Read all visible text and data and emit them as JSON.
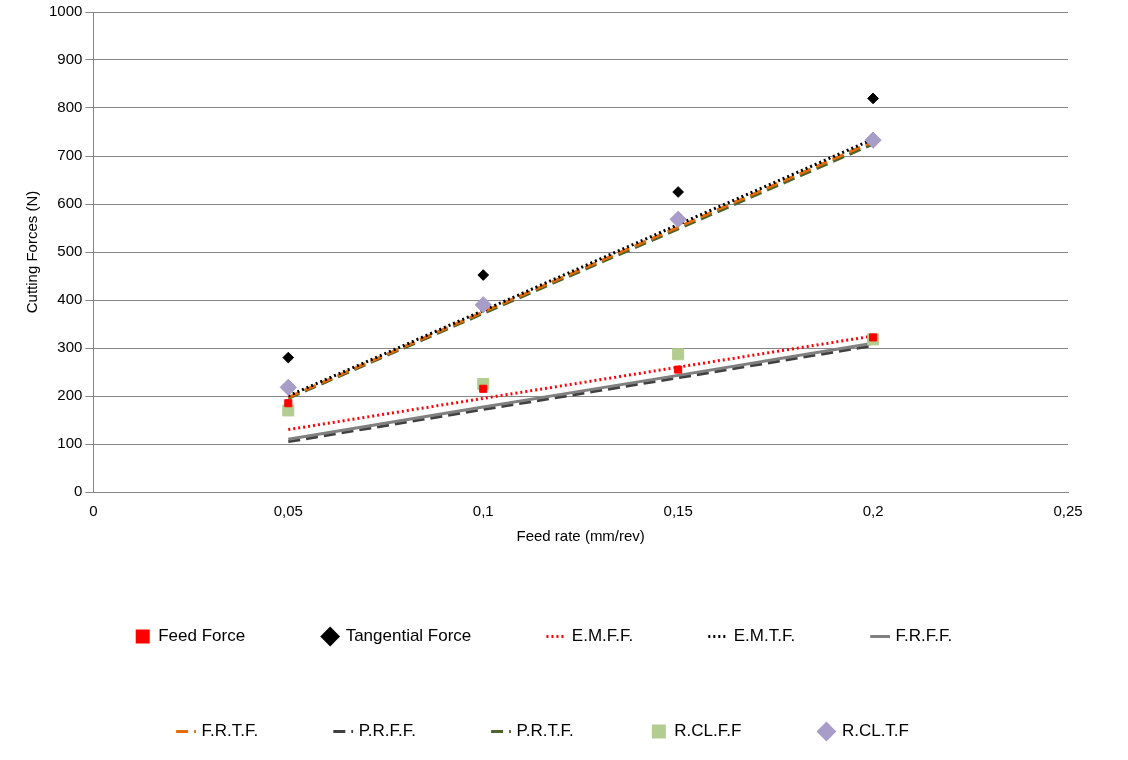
{
  "chart_data": {
    "type": "scatter",
    "xlabel": "Feed rate (mm/rev)",
    "ylabel": "Cutting Forces (N)",
    "x": [
      0.05,
      0.1,
      0.15,
      0.2
    ],
    "xlim": [
      0,
      0.25
    ],
    "xticks": [
      0,
      {
        "value": 0.05,
        "label": "0,05"
      },
      {
        "value": 0.1,
        "label": "0,1"
      },
      {
        "value": 0.15,
        "label": "0,15"
      },
      {
        "value": 0.2,
        "label": "0,2"
      },
      {
        "value": 0.25,
        "label": "0,25"
      }
    ],
    "ylim": [
      0,
      1000
    ],
    "yticks": [
      0,
      100,
      200,
      300,
      400,
      500,
      600,
      700,
      800,
      900,
      1000
    ],
    "grid": "y",
    "legend": "bottom",
    "series": [
      {
        "name": "Feed Force",
        "marker": "square",
        "color": "#ff0000",
        "values": [
          185,
          215,
          255,
          322
        ]
      },
      {
        "name": "Tangential Force",
        "marker": "diamond",
        "color": "#000000",
        "values": [
          280,
          452,
          625,
          820
        ]
      },
      {
        "name": "E.M.F.F.",
        "type": "line",
        "marker": "none",
        "line_style": "dotted",
        "color": "#ff0000",
        "values": [
          130,
          195,
          260,
          325
        ]
      },
      {
        "name": "E.M.T.F.",
        "type": "line",
        "marker": "none",
        "line_style": "dotted",
        "color": "#000000",
        "values": [
          200,
          378,
          557,
          735
        ]
      },
      {
        "name": "F.R.F.F.",
        "type": "line",
        "marker": "none",
        "line_style": "solid",
        "color": "#808080",
        "values": [
          110,
          177,
          243,
          310
        ]
      },
      {
        "name": "F.R.T.F.",
        "type": "line",
        "marker": "none",
        "line_style": "dashed",
        "color": "#e46c0a",
        "values": [
          197,
          375,
          552,
          730
        ]
      },
      {
        "name": "P.R.F.F.",
        "type": "line",
        "marker": "none",
        "line_style": "dashed",
        "color": "#404040",
        "values": [
          105,
          172,
          238,
          305
        ]
      },
      {
        "name": "P.R.T.F.",
        "type": "line",
        "marker": "none",
        "line_style": "dashed",
        "color": "#4f6228",
        "values": [
          195,
          372,
          548,
          725
        ]
      },
      {
        "name": "R.CL.F.F",
        "marker": "square",
        "color": "#b3cc8f",
        "values": [
          170,
          225,
          287,
          318
        ]
      },
      {
        "name": "R.CL.T.F",
        "marker": "diamond",
        "color": "#a89cc8",
        "values": [
          218,
          390,
          568,
          733
        ]
      }
    ]
  }
}
